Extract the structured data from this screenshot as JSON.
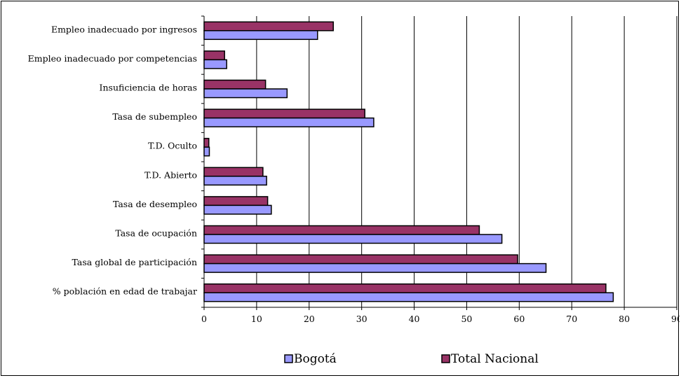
{
  "chart_data": {
    "type": "bar",
    "orientation": "horizontal",
    "categories": [
      "Empleo inadecuado por ingresos",
      "Empleo inadecuado por competencias",
      "Insuficiencia de horas",
      "Tasa de subempleo",
      "T.D. Oculto",
      "T.D. Abierto",
      "Tasa de desempleo",
      "Tasa de ocupación",
      "Tasa global de participación",
      "% población en edad de trabajar"
    ],
    "series": [
      {
        "name": "Total Nacional",
        "color": "#993366",
        "values": [
          24.6,
          3.9,
          11.7,
          30.6,
          0.9,
          11.2,
          12.1,
          52.4,
          59.7,
          76.5
        ]
      },
      {
        "name": "Bogotá",
        "color": "#9999ff",
        "values": [
          21.6,
          4.3,
          15.8,
          32.3,
          1.0,
          11.9,
          12.8,
          56.7,
          65.1,
          77.9
        ]
      }
    ],
    "xlim": [
      0,
      90
    ],
    "xticks": [
      "0",
      "10",
      "20",
      "30",
      "40",
      "50",
      "60",
      "70",
      "80",
      "90"
    ],
    "grid": "vertical",
    "legend": {
      "placement": "bottom",
      "order": [
        "Bogotá",
        "Total Nacional"
      ]
    },
    "title": "",
    "xlabel": "",
    "ylabel": ""
  }
}
